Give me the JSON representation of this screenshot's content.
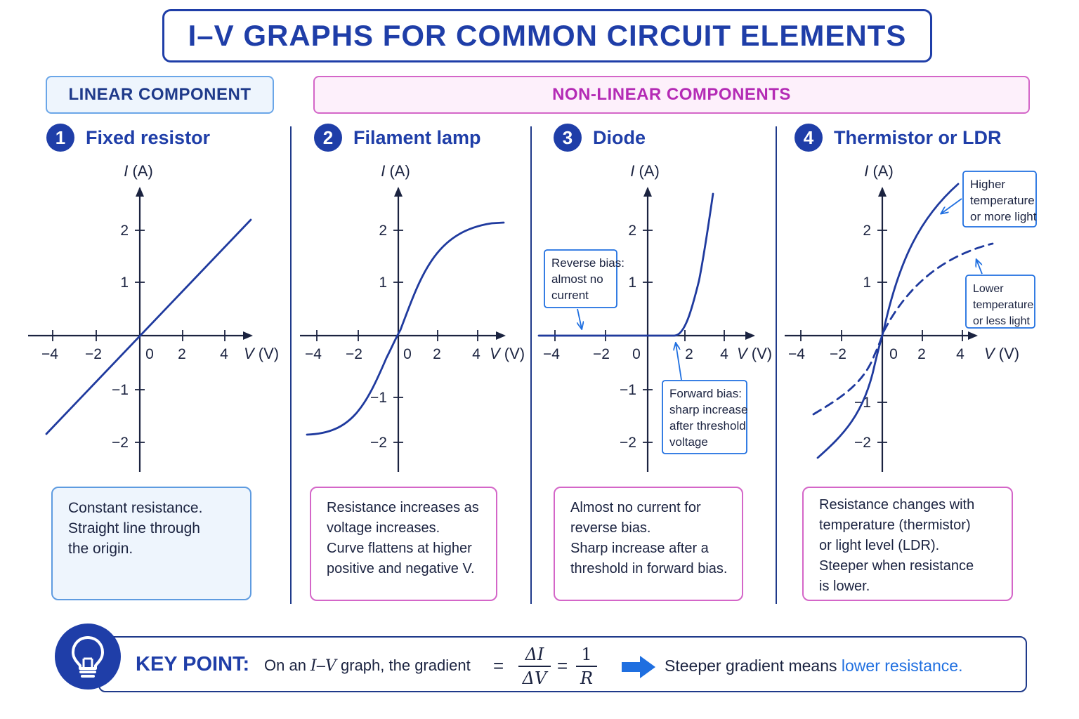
{
  "title": "I–V GRAPHS FOR COMMON CIRCUIT ELEMENTS",
  "categories": {
    "linear": "LINEAR COMPONENT",
    "nonlinear": "NON-LINEAR COMPONENTS"
  },
  "axis_labels": {
    "y_italic": "I",
    "y_unit": " (A)",
    "x_italic": "V",
    "x_unit": " (V)"
  },
  "ticks": {
    "x": [
      "−4",
      "−2",
      "0",
      "2",
      "4"
    ],
    "y": [
      "2",
      "1",
      "−1",
      "−2"
    ]
  },
  "panels": [
    {
      "number": "1",
      "title": "Fixed resistor",
      "description": [
        "Constant resistance.",
        "Straight line through",
        "the origin."
      ]
    },
    {
      "number": "2",
      "title": "Filament lamp",
      "description": [
        "Resistance increases as",
        "voltage increases.",
        "Curve flattens at higher",
        "positive and negative V."
      ]
    },
    {
      "number": "3",
      "title": "Diode",
      "description": [
        "Almost no current for",
        "reverse bias.",
        "Sharp increase after a",
        "threshold in forward bias."
      ],
      "callouts": {
        "reverse": [
          "Reverse bias:",
          "almost no",
          "current"
        ],
        "forward": [
          "Forward bias:",
          "sharp increase",
          "after threshold",
          "voltage"
        ]
      }
    },
    {
      "number": "4",
      "title": "Thermistor or LDR",
      "description": [
        "Resistance changes with",
        "temperature (thermistor)",
        "or light level (LDR).",
        "Steeper when resistance",
        "is lower."
      ],
      "callouts": {
        "higher": [
          "Higher",
          "temperature",
          "or more light"
        ],
        "lower": [
          "Lower",
          "temperature",
          "or less light"
        ]
      }
    }
  ],
  "key_point": {
    "label": "KEY POINT:",
    "text_pre": "On an ",
    "text_i": "I",
    "text_dash": "–",
    "text_v": "V",
    "text_post": " graph, the gradient",
    "eq": "=",
    "frac1_num": "ΔI",
    "frac1_den": "ΔV",
    "frac2_num": "1",
    "frac2_den": "R",
    "result_pre": "Steeper gradient means ",
    "result_highlight": "lower resistance."
  },
  "colors": {
    "primary": "#1f3ea8",
    "axis": "#1b2340",
    "curve": "#1f3a9e",
    "callout_border": "#1f6fe0",
    "linear_border": "#5e9be0",
    "nonlinear_border": "#d466c8",
    "nonlinear_text": "#b42bb5",
    "highlight": "#1f6fe0"
  },
  "icons": {
    "key_point": "lightbulb-icon",
    "arrow": "arrow-right-icon"
  }
}
